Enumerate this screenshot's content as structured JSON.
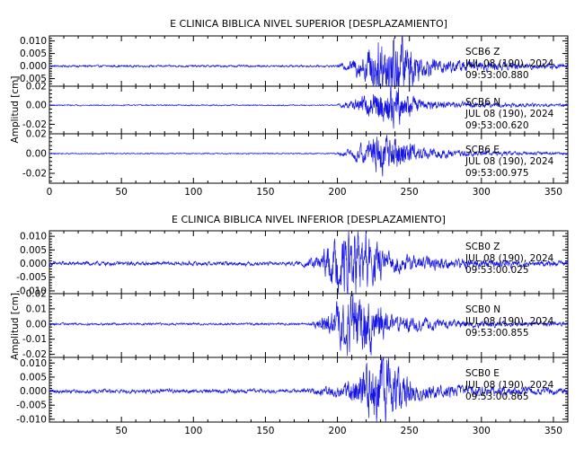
{
  "chart_data": [
    {
      "type": "line",
      "title": "E CLINICA BIBLICA NIVEL SUPERIOR [DESPLAZAMIENTO]",
      "ylabel": "Amplitud [cm]",
      "xlabel": "",
      "xlim": [
        0,
        360
      ],
      "x_ticks": [
        0,
        50,
        100,
        150,
        200,
        250,
        300,
        350
      ],
      "channels": [
        {
          "station": "SCB6",
          "component": "Z",
          "date": "JUL 08 (190), 2024",
          "time": "09:53:00.880",
          "ylim": [
            -0.008,
            0.012
          ],
          "y_ticks": [
            0.01,
            0.005,
            0.0,
            -0.005
          ],
          "y_tick_labels": [
            "0.010",
            "0.005",
            "0.000",
            "-0.005"
          ],
          "onset": 200,
          "peak_time": 237,
          "peak_amplitude": 0.014,
          "pre_event_amplitude": 0.0004,
          "color": "#1414e6"
        },
        {
          "station": "SCB6",
          "component": "N",
          "date": "JUL 08 (190), 2024",
          "time": "09:53:00.620",
          "ylim": [
            -0.03,
            0.02
          ],
          "y_ticks": [
            0.02,
            0.0,
            -0.02
          ],
          "y_tick_labels": [
            "0.02",
            "0.00",
            "-0.02"
          ],
          "onset": 200,
          "peak_time": 235,
          "peak_amplitude": 0.02,
          "pre_event_amplitude": 0.0006,
          "color": "#1414e6"
        },
        {
          "station": "SCB6",
          "component": "E",
          "date": "JUL 08 (190), 2024",
          "time": "09:53:00.975",
          "ylim": [
            -0.03,
            0.02
          ],
          "y_ticks": [
            0.02,
            0.0,
            -0.02
          ],
          "y_tick_labels": [
            "0.02",
            "0.00",
            "-0.02"
          ],
          "onset": 200,
          "peak_time": 234,
          "peak_amplitude": 0.02,
          "pre_event_amplitude": 0.0006,
          "color": "#1414e6"
        }
      ]
    },
    {
      "type": "line",
      "title": "E CLINICA BIBLICA NIVEL INFERIOR [DESPLAZAMIENTO]",
      "ylabel": "Amplitud [cm]",
      "xlabel": "",
      "xlim": [
        0,
        360
      ],
      "x_ticks": [
        50,
        100,
        150,
        200,
        250,
        300,
        350
      ],
      "channels": [
        {
          "station": "SCB0",
          "component": "Z",
          "date": "JUL 08 (190), 2024",
          "time": "09:53:00.025",
          "ylim": [
            -0.011,
            0.012
          ],
          "y_ticks": [
            0.01,
            0.005,
            0.0,
            -0.005,
            -0.01
          ],
          "y_tick_labels": [
            "0.010",
            "0.005",
            "0.000",
            "-0.005",
            "-0.010"
          ],
          "onset": 175,
          "peak_time": 212,
          "peak_amplitude": 0.012,
          "pre_event_amplitude": 0.0007,
          "color": "#1414e6"
        },
        {
          "station": "SCB0",
          "component": "N",
          "date": "JUL 08 (190), 2024",
          "time": "09:53:00.855",
          "ylim": [
            -0.022,
            0.02
          ],
          "y_ticks": [
            0.02,
            0.01,
            0.0,
            -0.01,
            -0.02
          ],
          "y_tick_labels": [
            "0.02",
            "0.01",
            "0.00",
            "-0.01",
            "-0.02"
          ],
          "onset": 180,
          "peak_time": 214,
          "peak_amplitude": 0.02,
          "pre_event_amplitude": 0.0007,
          "color": "#1414e6"
        },
        {
          "station": "SCB0",
          "component": "E",
          "date": "JUL 08 (190), 2024",
          "time": "09:53:00.865",
          "ylim": [
            -0.011,
            0.012
          ],
          "y_ticks": [
            0.01,
            0.005,
            0.0,
            -0.005,
            -0.01
          ],
          "y_tick_labels": [
            "0.010",
            "0.005",
            "0.000",
            "-0.005",
            "-0.010"
          ],
          "onset": 175,
          "peak_time": 230,
          "peak_amplitude": 0.011,
          "pre_event_amplitude": 0.0007,
          "color": "#1414e6"
        }
      ]
    }
  ]
}
